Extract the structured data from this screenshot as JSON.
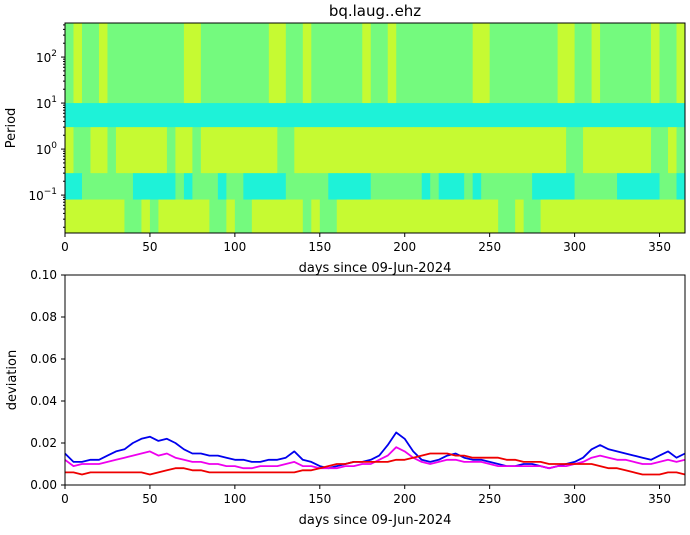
{
  "chart_data": [
    {
      "type": "heatmap",
      "title": "bq.laug..ehz",
      "xlabel": "days since 09-Jun-2024",
      "ylabel": "Period",
      "x_ticks": [
        0,
        50,
        100,
        150,
        200,
        250,
        300,
        350
      ],
      "xlim": [
        0,
        365
      ],
      "y_scale": "log",
      "ylim": [
        0.015,
        550
      ],
      "y_ticks": [
        {
          "value": 0.1,
          "base": "10",
          "exp": "−1"
        },
        {
          "value": 1,
          "base": "10",
          "exp": "0"
        },
        {
          "value": 10,
          "base": "10",
          "exp": "1"
        },
        {
          "value": 100,
          "base": "10",
          "exp": "2"
        }
      ],
      "colormap": "jet-like, green dominant",
      "palette": {
        "cyan": "#1ef2d8",
        "green": "#74fa7e",
        "yellow_green": "#c6fa32"
      },
      "bands": [
        {
          "period_range": [
            10,
            550
          ],
          "level": 0.5
        },
        {
          "period_range": [
            3,
            10
          ],
          "level": 0.34,
          "note": "blue-cyan band"
        },
        {
          "period_range": [
            0.3,
            3
          ],
          "level": 0.56,
          "note": "yellow-green patches days 150-270"
        },
        {
          "period_range": [
            0.08,
            0.3
          ],
          "level": 0.42,
          "note": "cyan band"
        },
        {
          "period_range": [
            0.015,
            0.08
          ],
          "level": 0.55,
          "note": "yellow patches days 200-230 and 300-350"
        }
      ]
    },
    {
      "type": "line",
      "xlabel": "days since 09-Jun-2024",
      "ylabel": "deviation",
      "xlim": [
        0,
        365
      ],
      "ylim": [
        0,
        0.1
      ],
      "x_ticks": [
        0,
        50,
        100,
        150,
        200,
        250,
        300,
        350
      ],
      "y_ticks": [
        "0.00",
        "0.02",
        "0.04",
        "0.06",
        "0.08",
        "0.10"
      ],
      "x": [
        0,
        5,
        10,
        15,
        20,
        25,
        30,
        35,
        40,
        45,
        50,
        55,
        60,
        65,
        70,
        75,
        80,
        85,
        90,
        95,
        100,
        105,
        110,
        115,
        120,
        125,
        130,
        135,
        140,
        145,
        150,
        155,
        160,
        165,
        170,
        175,
        180,
        185,
        190,
        195,
        200,
        205,
        210,
        215,
        220,
        225,
        230,
        235,
        240,
        245,
        250,
        255,
        260,
        265,
        270,
        275,
        280,
        285,
        290,
        295,
        300,
        305,
        310,
        315,
        320,
        325,
        330,
        335,
        340,
        345,
        350,
        355,
        360,
        365
      ],
      "series": [
        {
          "color": "#0000ee",
          "values": [
            0.015,
            0.011,
            0.011,
            0.012,
            0.012,
            0.014,
            0.016,
            0.017,
            0.02,
            0.022,
            0.023,
            0.021,
            0.022,
            0.02,
            0.017,
            0.015,
            0.015,
            0.014,
            0.014,
            0.013,
            0.012,
            0.012,
            0.011,
            0.011,
            0.012,
            0.012,
            0.013,
            0.016,
            0.012,
            0.011,
            0.009,
            0.008,
            0.009,
            0.01,
            0.011,
            0.011,
            0.012,
            0.014,
            0.019,
            0.025,
            0.022,
            0.016,
            0.012,
            0.011,
            0.012,
            0.014,
            0.015,
            0.013,
            0.012,
            0.012,
            0.011,
            0.01,
            0.009,
            0.009,
            0.01,
            0.01,
            0.009,
            0.008,
            0.009,
            0.01,
            0.011,
            0.013,
            0.017,
            0.019,
            0.017,
            0.016,
            0.015,
            0.014,
            0.013,
            0.012,
            0.014,
            0.016,
            0.013,
            0.015
          ]
        },
        {
          "color": "#ee00ee",
          "values": [
            0.012,
            0.009,
            0.01,
            0.01,
            0.01,
            0.011,
            0.012,
            0.013,
            0.014,
            0.015,
            0.016,
            0.014,
            0.015,
            0.013,
            0.012,
            0.011,
            0.011,
            0.01,
            0.01,
            0.009,
            0.009,
            0.008,
            0.008,
            0.009,
            0.009,
            0.009,
            0.01,
            0.011,
            0.009,
            0.009,
            0.008,
            0.008,
            0.008,
            0.009,
            0.009,
            0.01,
            0.01,
            0.012,
            0.014,
            0.018,
            0.016,
            0.013,
            0.011,
            0.01,
            0.011,
            0.012,
            0.012,
            0.011,
            0.011,
            0.011,
            0.01,
            0.009,
            0.009,
            0.009,
            0.009,
            0.009,
            0.009,
            0.008,
            0.009,
            0.009,
            0.01,
            0.011,
            0.013,
            0.014,
            0.013,
            0.012,
            0.012,
            0.011,
            0.01,
            0.01,
            0.011,
            0.012,
            0.011,
            0.012
          ]
        },
        {
          "color": "#ee0000",
          "values": [
            0.006,
            0.006,
            0.005,
            0.006,
            0.006,
            0.006,
            0.006,
            0.006,
            0.006,
            0.006,
            0.005,
            0.006,
            0.007,
            0.008,
            0.008,
            0.007,
            0.007,
            0.006,
            0.006,
            0.006,
            0.006,
            0.006,
            0.006,
            0.006,
            0.006,
            0.006,
            0.006,
            0.006,
            0.007,
            0.007,
            0.008,
            0.009,
            0.01,
            0.01,
            0.011,
            0.011,
            0.011,
            0.011,
            0.011,
            0.012,
            0.012,
            0.013,
            0.014,
            0.015,
            0.015,
            0.015,
            0.014,
            0.014,
            0.013,
            0.013,
            0.013,
            0.013,
            0.012,
            0.012,
            0.011,
            0.011,
            0.011,
            0.01,
            0.01,
            0.01,
            0.01,
            0.01,
            0.01,
            0.009,
            0.008,
            0.008,
            0.007,
            0.006,
            0.005,
            0.005,
            0.005,
            0.006,
            0.006,
            0.005
          ]
        }
      ]
    }
  ]
}
